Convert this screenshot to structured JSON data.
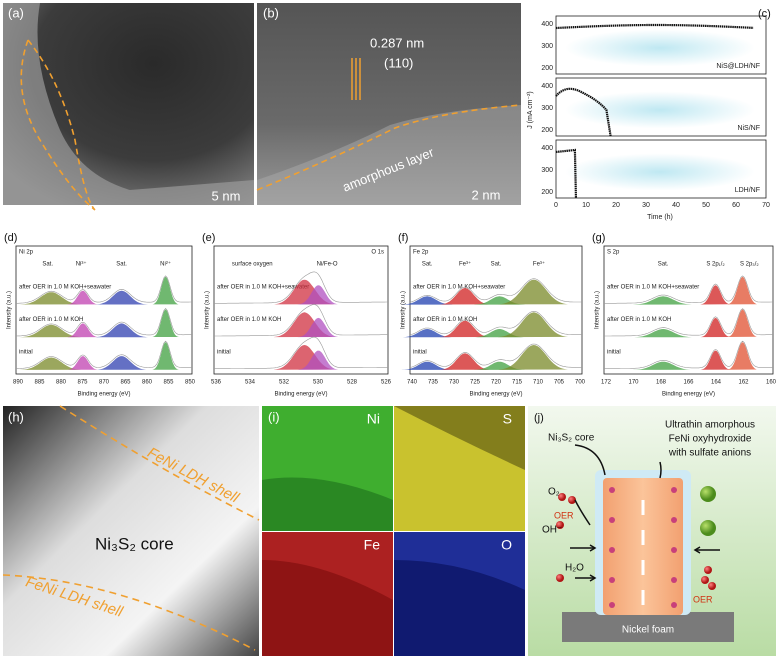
{
  "panels": {
    "a": {
      "label": "(a)",
      "scale": "5 nm"
    },
    "b": {
      "label": "(b)",
      "d_spacing": "0.287 nm",
      "plane": "(110)",
      "annotation": "amorphous layer",
      "scale": "2 nm"
    },
    "c": {
      "label": "(c)",
      "x_label": "Time (h)",
      "y_label": "J (mA cm⁻²)",
      "x_ticks": [
        "0",
        "10",
        "20",
        "30",
        "40",
        "50",
        "60",
        "70"
      ],
      "subplots": [
        {
          "name": "NiS@LDH/NF",
          "y_ticks": [
            "400",
            "300",
            "200"
          ]
        },
        {
          "name": "NiS/NF",
          "y_ticks": [
            "400",
            "300",
            "200"
          ]
        },
        {
          "name": "LDH/NF",
          "y_ticks": [
            "400",
            "300",
            "200"
          ]
        }
      ]
    },
    "d": {
      "label": "(d)",
      "title": "Ni 2p",
      "peaks": [
        "Sat.",
        "Ni³⁺",
        "Sat.",
        "Ni²⁺"
      ],
      "traces": [
        "after OER in 1.0 M KOH+seawater",
        "after OER in 1.0 M KOH",
        "initial"
      ],
      "x_label": "Binding energy (eV)",
      "y_label": "Intensity (a.u.)",
      "x_ticks": [
        "890",
        "885",
        "880",
        "875",
        "870",
        "865",
        "860",
        "855",
        "850"
      ]
    },
    "e": {
      "label": "(e)",
      "title": "O 1s",
      "peaks": [
        "surface oxygen",
        "Ni/Fe-O"
      ],
      "traces": [
        "after OER in 1.0 M KOH+seawater",
        "after OER in 1.0 M KOH",
        "initial"
      ],
      "x_label": "Binding energy (eV)",
      "y_label": "Intensity (a.u.)",
      "x_ticks": [
        "536",
        "534",
        "532",
        "530",
        "528",
        "526"
      ]
    },
    "f": {
      "label": "(f)",
      "title": "Fe 2p",
      "peaks": [
        "Sat.",
        "Fe³⁺",
        "Sat.",
        "Fe³⁺"
      ],
      "traces": [
        "after OER in 1.0 M KOH+seawater",
        "after OER in 1.0 M KOH",
        "initial"
      ],
      "x_label": "Binding energy (eV)",
      "y_label": "Intensity (a.u.)",
      "x_ticks": [
        "740",
        "735",
        "730",
        "725",
        "720",
        "715",
        "710",
        "705",
        "700"
      ]
    },
    "g": {
      "label": "(g)",
      "title": "S 2p",
      "peaks": [
        "Sat.",
        "S 2p₁/₂",
        "S 2p₃/₂"
      ],
      "traces": [
        "after OER in 1.0 M KOH+seawater",
        "after OER in 1.0 M KOH",
        "initial"
      ],
      "x_label": "Binding energy (eV)",
      "y_label": "Intensity (a.u.)",
      "x_ticks": [
        "172",
        "170",
        "168",
        "166",
        "164",
        "162",
        "160"
      ]
    },
    "h": {
      "label": "(h)",
      "shell_top": "FeNi LDH shell",
      "core": "Ni₃S₂ core",
      "shell_bottom": "FeNi LDH shell"
    },
    "i": {
      "label": "(i)",
      "maps": [
        "Ni",
        "S",
        "Fe",
        "O"
      ]
    },
    "j": {
      "label": "(j)",
      "core": "Ni₃S₂ core",
      "shell_lines": [
        "Ultrathin amorphous",
        "FeNi oxyhydroxide",
        "with sulfate anions"
      ],
      "o2": "O₂",
      "oer_left": "OER",
      "oh": "OH⁻",
      "h2o": "H₂O",
      "oer_right": "OER",
      "substrate": "Nickel foam"
    }
  }
}
